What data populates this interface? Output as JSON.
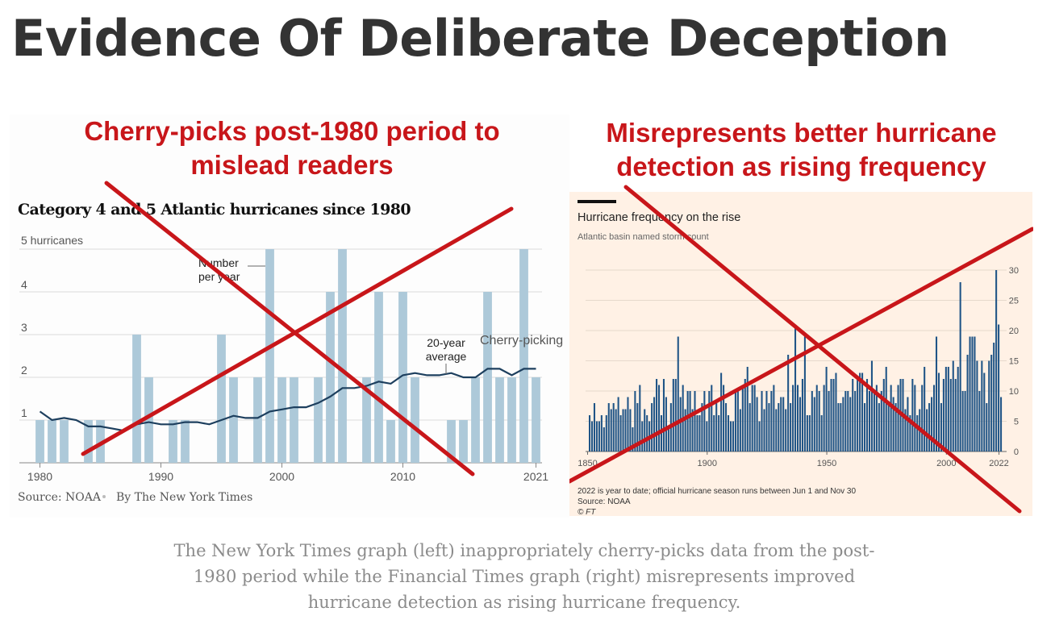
{
  "page": {
    "title": "Evidence Of Deliberate Deception",
    "caption_lines": [
      "The New York Times graph (left) inappropriately cherry-picks data from the post-",
      "1980 period while the Financial Times graph (right) misrepresents improved",
      "hurricane detection as rising hurricane frequency."
    ]
  },
  "annotations": {
    "left_banner": [
      "Cherry-picks post-1980 period to",
      "mislead readers"
    ],
    "right_banner": [
      "Misrepresents better hurricane",
      "detection as rising frequency"
    ],
    "left_side_note": "Cherry-picking",
    "cross_color": "#c8161a"
  },
  "chart_data": [
    {
      "type": "bar",
      "title": "Category 4 and 5 Atlantic hurricanes since 1980",
      "y_unit_label": "5 hurricanes",
      "y_ticks": [
        1,
        2,
        3,
        4
      ],
      "ylim": [
        0,
        5
      ],
      "x_tick_labels": [
        "1980",
        "1990",
        "2000",
        "2010",
        "2021"
      ],
      "x": [
        1980,
        1981,
        1982,
        1983,
        1984,
        1985,
        1986,
        1987,
        1988,
        1989,
        1990,
        1991,
        1992,
        1993,
        1994,
        1995,
        1996,
        1997,
        1998,
        1999,
        2000,
        2001,
        2002,
        2003,
        2004,
        2005,
        2006,
        2007,
        2008,
        2009,
        2010,
        2011,
        2012,
        2013,
        2014,
        2015,
        2016,
        2017,
        2018,
        2019,
        2020,
        2021
      ],
      "values": [
        1,
        1,
        1,
        0,
        1,
        1,
        0,
        0,
        3,
        2,
        0,
        1,
        1,
        0,
        0,
        3,
        2,
        0,
        2,
        5,
        2,
        2,
        0,
        2,
        4,
        5,
        0,
        2,
        4,
        1,
        4,
        2,
        0,
        0,
        1,
        1,
        2,
        4,
        2,
        2,
        5,
        2
      ],
      "series": [
        {
          "name": "Number per year",
          "values": [
            1,
            1,
            1,
            0,
            1,
            1,
            0,
            0,
            3,
            2,
            0,
            1,
            1,
            0,
            0,
            3,
            2,
            0,
            2,
            5,
            2,
            2,
            0,
            2,
            4,
            5,
            0,
            2,
            4,
            1,
            4,
            2,
            0,
            0,
            1,
            1,
            2,
            4,
            2,
            2,
            5,
            2
          ]
        },
        {
          "name": "20-year average",
          "values": [
            1.2,
            1.0,
            1.05,
            1.0,
            0.85,
            0.85,
            0.8,
            0.75,
            0.9,
            0.95,
            0.9,
            0.9,
            0.95,
            0.95,
            0.9,
            1.0,
            1.1,
            1.05,
            1.05,
            1.2,
            1.25,
            1.3,
            1.3,
            1.4,
            1.55,
            1.75,
            1.75,
            1.8,
            1.9,
            1.85,
            2.05,
            2.1,
            2.05,
            2.05,
            2.1,
            2.0,
            2.0,
            2.2,
            2.2,
            2.05,
            2.2,
            2.2
          ]
        }
      ],
      "annotation_labels": {
        "number_per_year": "Number per year",
        "average": "20-year average"
      },
      "source": "Source: NOAA",
      "byline": "By The New York Times",
      "bar_color": "#adc9d9",
      "line_color": "#1d3f5e"
    },
    {
      "type": "bar",
      "title": "Hurricane frequency on the rise",
      "subtitle": "Atlantic basin named storm count",
      "x_start": 1851,
      "x_end": 2022,
      "x_tick_labels": [
        "1850",
        "1900",
        "1950",
        "2000",
        "2022"
      ],
      "y_ticks": [
        0,
        5,
        10,
        15,
        20,
        25,
        30
      ],
      "ylim": [
        0,
        32
      ],
      "values": [
        6,
        5,
        8,
        5,
        5,
        6,
        4,
        6,
        8,
        7,
        8,
        7,
        9,
        6,
        7,
        7,
        9,
        7,
        4,
        10,
        8,
        11,
        5,
        7,
        6,
        5,
        8,
        9,
        12,
        11,
        6,
        12,
        9,
        4,
        8,
        12,
        12,
        19,
        9,
        11,
        7,
        10,
        10,
        7,
        10,
        6,
        6,
        8,
        10,
        5,
        10,
        11,
        6,
        8,
        6,
        13,
        11,
        8,
        6,
        5,
        5,
        10,
        10,
        7,
        11,
        12,
        14,
        8,
        11,
        11,
        9,
        5,
        10,
        7,
        10,
        8,
        10,
        11,
        7,
        8,
        9,
        9,
        7,
        16,
        8,
        11,
        21,
        11,
        9,
        12,
        19,
        6,
        6,
        10,
        9,
        11,
        10,
        6,
        11,
        14,
        10,
        12,
        12,
        13,
        8,
        8,
        9,
        10,
        10,
        9,
        12,
        10,
        12,
        13,
        13,
        8,
        12,
        10,
        15,
        10,
        11,
        8,
        10,
        12,
        14,
        8,
        11,
        9,
        8,
        11,
        12,
        12,
        7,
        9,
        6,
        12,
        11,
        6,
        7,
        11,
        14,
        7,
        8,
        9,
        11,
        19,
        13,
        8,
        12,
        14,
        14,
        12,
        15,
        12,
        14,
        28,
        10,
        10,
        16,
        19,
        19,
        19,
        15,
        10,
        15,
        13,
        8,
        15,
        16,
        18,
        30,
        21,
        9
      ],
      "notes": [
        "2022 is year to date; official hurricane season runs between Jun 1 and Nov 30",
        "Source: NOAA",
        "© FT"
      ],
      "bar_color": "#1f5486",
      "background": "#fff1e5"
    }
  ]
}
